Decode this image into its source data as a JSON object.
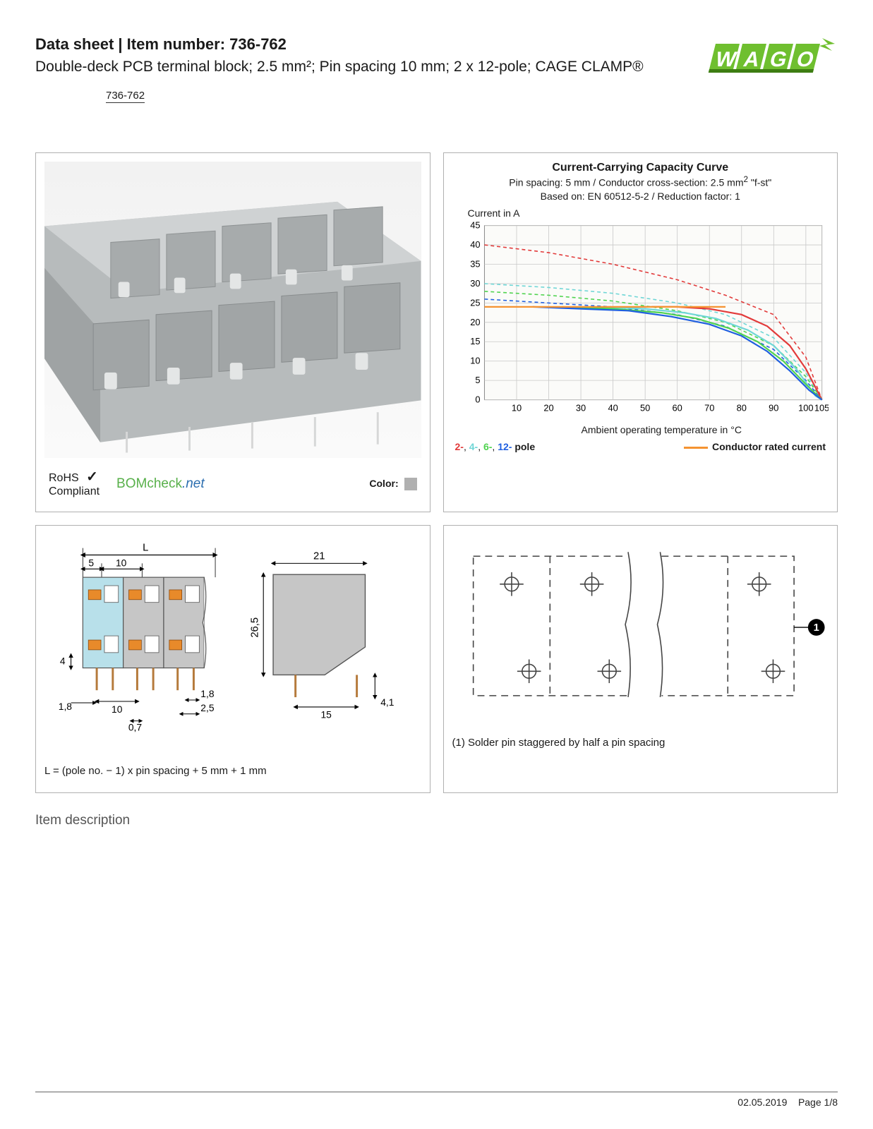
{
  "header": {
    "title_prefix": "Data sheet",
    "title_sep": "  |  ",
    "title_item_label": "Item number:",
    "item_number": "736-762",
    "subtitle": "Double-deck PCB terminal block; 2.5 mm²; Pin spacing 10 mm; 2 x 12-pole; CAGE CLAMP®",
    "link_text": "736-762"
  },
  "logo": {
    "text": "WAGO",
    "fill": "#6fbf2f",
    "shadow": "#3d7d12",
    "arrow_fill": "#6fbf2f"
  },
  "product_panel": {
    "rohs_line1": "RoHS",
    "rohs_line2": "Compliant",
    "check_mark": "✓",
    "bomcheck_prefix": "BOM",
    "bomcheck_mid": "check",
    "bomcheck_suffix": ".net",
    "bomcheck_color_prefix": "#58b04a",
    "bomcheck_color_suffix": "#2d6fb0",
    "color_label": "Color:",
    "color_swatch": "#b0b0b0"
  },
  "chart": {
    "title": "Current-Carrying Capacity Curve",
    "sub1_prefix": "Pin spacing: 5 mm / Conductor cross-section: 2.5 mm",
    "sub1_suffix": " \"f-st\"",
    "sub1_sup": "2",
    "sub2": "Based on: EN 60512-5-2 / Reduction factor: 1",
    "y_label": "Current in A",
    "x_label": "Ambient operating temperature in °C",
    "x_ticks": [
      10,
      20,
      30,
      40,
      50,
      60,
      70,
      80,
      90,
      100,
      105
    ],
    "y_ticks": [
      0,
      5,
      10,
      15,
      20,
      25,
      30,
      35,
      40,
      45
    ],
    "xlim": [
      0,
      105
    ],
    "ylim": [
      0,
      45
    ],
    "grid_color": "#c8c8c8",
    "bg_color": "#fbfbf9",
    "series": [
      {
        "name": "2-pole-dash",
        "color": "#e23a3a",
        "dash": "5,4",
        "width": 1.6,
        "points": [
          [
            0,
            40
          ],
          [
            20,
            38
          ],
          [
            40,
            35
          ],
          [
            60,
            31
          ],
          [
            75,
            27
          ],
          [
            90,
            22
          ],
          [
            100,
            11
          ],
          [
            105,
            0
          ]
        ]
      },
      {
        "name": "4-pole-dash",
        "color": "#6fd6d6",
        "dash": "5,4",
        "width": 1.6,
        "points": [
          [
            0,
            30
          ],
          [
            20,
            29
          ],
          [
            40,
            27.5
          ],
          [
            60,
            25
          ],
          [
            75,
            22
          ],
          [
            90,
            16
          ],
          [
            100,
            7
          ],
          [
            105,
            0
          ]
        ]
      },
      {
        "name": "6-pole-dash",
        "color": "#4fd34f",
        "dash": "5,4",
        "width": 1.6,
        "points": [
          [
            0,
            28
          ],
          [
            20,
            27
          ],
          [
            40,
            25.5
          ],
          [
            60,
            23
          ],
          [
            75,
            20
          ],
          [
            90,
            14
          ],
          [
            100,
            6
          ],
          [
            105,
            0
          ]
        ]
      },
      {
        "name": "12-pole-dash",
        "color": "#1f5fe0",
        "dash": "5,4",
        "width": 1.6,
        "points": [
          [
            0,
            26
          ],
          [
            20,
            25
          ],
          [
            40,
            24
          ],
          [
            60,
            22
          ],
          [
            75,
            19
          ],
          [
            90,
            13
          ],
          [
            100,
            5
          ],
          [
            105,
            0
          ]
        ]
      },
      {
        "name": "2-pole",
        "color": "#e23a3a",
        "dash": "",
        "width": 2.2,
        "points": [
          [
            52,
            24
          ],
          [
            60,
            24
          ],
          [
            70,
            23.5
          ],
          [
            80,
            22
          ],
          [
            88,
            19
          ],
          [
            95,
            14
          ],
          [
            100,
            8
          ],
          [
            105,
            0
          ]
        ]
      },
      {
        "name": "4-pole",
        "color": "#6fd6d6",
        "dash": "",
        "width": 2.2,
        "points": [
          [
            35,
            24
          ],
          [
            50,
            23.5
          ],
          [
            62,
            22.5
          ],
          [
            72,
            21
          ],
          [
            82,
            18
          ],
          [
            90,
            14
          ],
          [
            97,
            8
          ],
          [
            103,
            1
          ],
          [
            105,
            0
          ]
        ]
      },
      {
        "name": "6-pole",
        "color": "#4fd34f",
        "dash": "",
        "width": 2.2,
        "points": [
          [
            24,
            24
          ],
          [
            40,
            23.5
          ],
          [
            55,
            22.5
          ],
          [
            66,
            21
          ],
          [
            76,
            18.5
          ],
          [
            85,
            15
          ],
          [
            93,
            10
          ],
          [
            100,
            4
          ],
          [
            105,
            0
          ]
        ]
      },
      {
        "name": "12-pole",
        "color": "#1f5fe0",
        "dash": "",
        "width": 2.2,
        "points": [
          [
            15,
            24
          ],
          [
            30,
            23.5
          ],
          [
            45,
            23
          ],
          [
            58,
            21.5
          ],
          [
            70,
            19.5
          ],
          [
            80,
            16.5
          ],
          [
            88,
            12.5
          ],
          [
            95,
            7.5
          ],
          [
            101,
            2.5
          ],
          [
            105,
            0
          ]
        ]
      },
      {
        "name": "rated",
        "color": "#f59331",
        "dash": "",
        "width": 2.4,
        "points": [
          [
            0,
            24
          ],
          [
            75,
            24
          ]
        ]
      }
    ],
    "legend_poles": [
      {
        "label": "2-",
        "color": "#e23a3a"
      },
      {
        "label": "4-",
        "color": "#6fd6d6"
      },
      {
        "label": "6-",
        "color": "#4fd34f"
      },
      {
        "label": "12-",
        "color": "#1f5fe0"
      }
    ],
    "legend_pole_word": "pole",
    "legend_rated_label": "Conductor rated current",
    "legend_rated_color": "#f59331"
  },
  "dim_panel": {
    "values": {
      "L": "L",
      "five": "5",
      "ten": "10",
      "ten_b": "10",
      "four": "4",
      "one_eight": "1,8",
      "one_eight_b": "1,8",
      "zero_seven": "0,7",
      "two_five": "2,5",
      "twenty_one": "21",
      "twenty_six_five": "26,5",
      "fifteen": "15",
      "four_one": "4,1"
    },
    "body_fill": "#c6c6c6",
    "body_stroke": "#555",
    "accent": "#e88a2a",
    "accent_blue": "#b8e0ea",
    "formula": "L = (pole no. − 1) x pin spacing + 5 mm + 1 mm"
  },
  "pin_panel": {
    "note": "(1) Solder pin staggered by half a pin spacing",
    "marker": "1"
  },
  "section_title": "Item description",
  "footer": {
    "date": "02.05.2019",
    "page_label": "Page",
    "page": "1/8"
  }
}
